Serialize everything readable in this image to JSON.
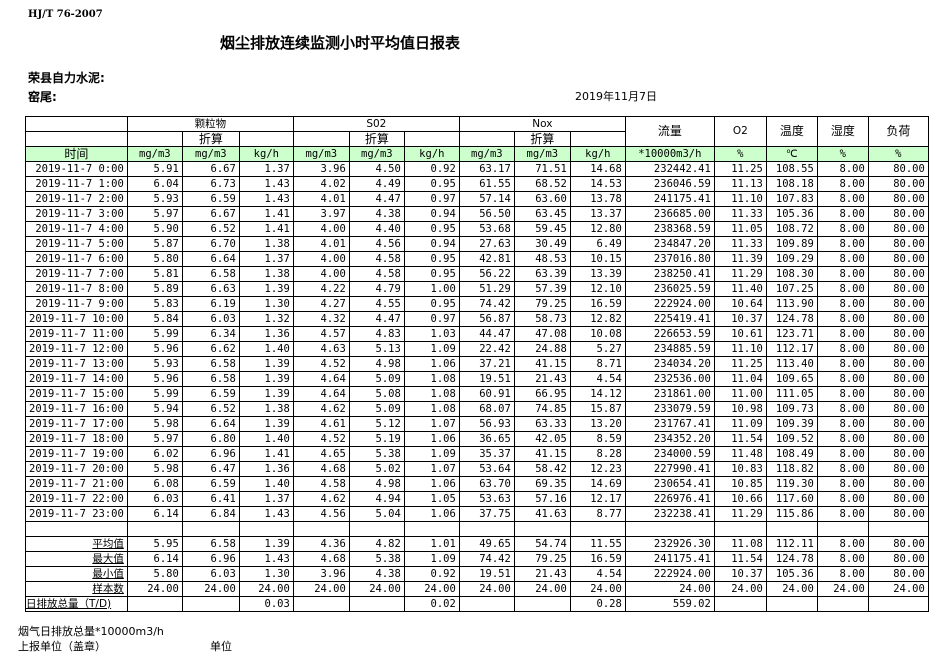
{
  "standard": "HJ/T  76-2007",
  "title": "烟尘排放连续监测小时平均值日报表",
  "company": "荣县自力水泥:",
  "kiln": "窑尾:",
  "date": "2019年11月7日",
  "header": {
    "particulate": "颗粒物",
    "so2": "S02",
    "nox": "Nox",
    "converted": "折算",
    "flow": "流量",
    "o2": "O2",
    "temperature": "温度",
    "humidity": "湿度",
    "load": "负荷",
    "time": "时间",
    "units": [
      "mg/m3",
      "mg/m3",
      "kg/h",
      "mg/m3",
      "mg/m3",
      "kg/h",
      "mg/m3",
      "mg/m3",
      "kg/h",
      "*10000m3/h",
      "%",
      "℃",
      "%",
      "%"
    ]
  },
  "colors": {
    "unit_row_bg": "#ccffcc"
  },
  "rows": [
    [
      "2019-11-7 0:00",
      "5.91",
      "6.67",
      "1.37",
      "3.96",
      "4.50",
      "0.92",
      "63.17",
      "71.51",
      "14.68",
      "232442.41",
      "11.25",
      "108.55",
      "8.00",
      "80.00"
    ],
    [
      "2019-11-7 1:00",
      "6.04",
      "6.73",
      "1.43",
      "4.02",
      "4.49",
      "0.95",
      "61.55",
      "68.52",
      "14.53",
      "236046.59",
      "11.13",
      "108.18",
      "8.00",
      "80.00"
    ],
    [
      "2019-11-7 2:00",
      "5.93",
      "6.59",
      "1.43",
      "4.01",
      "4.47",
      "0.97",
      "57.14",
      "63.60",
      "13.78",
      "241175.41",
      "11.10",
      "107.83",
      "8.00",
      "80.00"
    ],
    [
      "2019-11-7 3:00",
      "5.97",
      "6.67",
      "1.41",
      "3.97",
      "4.38",
      "0.94",
      "56.50",
      "63.45",
      "13.37",
      "236685.00",
      "11.33",
      "105.36",
      "8.00",
      "80.00"
    ],
    [
      "2019-11-7 4:00",
      "5.90",
      "6.52",
      "1.41",
      "4.00",
      "4.40",
      "0.95",
      "53.68",
      "59.45",
      "12.80",
      "238368.59",
      "11.05",
      "108.72",
      "8.00",
      "80.00"
    ],
    [
      "2019-11-7 5:00",
      "5.87",
      "6.70",
      "1.38",
      "4.01",
      "4.56",
      "0.94",
      "27.63",
      "30.49",
      "6.49",
      "234847.20",
      "11.33",
      "109.89",
      "8.00",
      "80.00"
    ],
    [
      "2019-11-7 6:00",
      "5.80",
      "6.64",
      "1.37",
      "4.00",
      "4.58",
      "0.95",
      "42.81",
      "48.53",
      "10.15",
      "237016.80",
      "11.39",
      "109.29",
      "8.00",
      "80.00"
    ],
    [
      "2019-11-7 7:00",
      "5.81",
      "6.58",
      "1.38",
      "4.00",
      "4.58",
      "0.95",
      "56.22",
      "63.39",
      "13.39",
      "238250.41",
      "11.29",
      "108.30",
      "8.00",
      "80.00"
    ],
    [
      "2019-11-7 8:00",
      "5.89",
      "6.63",
      "1.39",
      "4.22",
      "4.79",
      "1.00",
      "51.29",
      "57.39",
      "12.10",
      "236025.59",
      "11.40",
      "107.25",
      "8.00",
      "80.00"
    ],
    [
      "2019-11-7 9:00",
      "5.83",
      "6.19",
      "1.30",
      "4.27",
      "4.55",
      "0.95",
      "74.42",
      "79.25",
      "16.59",
      "222924.00",
      "10.64",
      "113.90",
      "8.00",
      "80.00"
    ],
    [
      "2019-11-7 10:00",
      "5.84",
      "6.03",
      "1.32",
      "4.32",
      "4.47",
      "0.97",
      "56.87",
      "58.73",
      "12.82",
      "225419.41",
      "10.37",
      "124.78",
      "8.00",
      "80.00"
    ],
    [
      "2019-11-7 11:00",
      "5.99",
      "6.34",
      "1.36",
      "4.57",
      "4.83",
      "1.03",
      "44.47",
      "47.08",
      "10.08",
      "226653.59",
      "10.61",
      "123.71",
      "8.00",
      "80.00"
    ],
    [
      "2019-11-7 12:00",
      "5.96",
      "6.62",
      "1.40",
      "4.63",
      "5.13",
      "1.09",
      "22.42",
      "24.88",
      "5.27",
      "234885.59",
      "11.10",
      "112.17",
      "8.00",
      "80.00"
    ],
    [
      "2019-11-7 13:00",
      "5.93",
      "6.58",
      "1.39",
      "4.52",
      "4.98",
      "1.06",
      "37.21",
      "41.15",
      "8.71",
      "234034.20",
      "11.25",
      "113.40",
      "8.00",
      "80.00"
    ],
    [
      "2019-11-7 14:00",
      "5.96",
      "6.58",
      "1.39",
      "4.64",
      "5.09",
      "1.08",
      "19.51",
      "21.43",
      "4.54",
      "232536.00",
      "11.04",
      "109.65",
      "8.00",
      "80.00"
    ],
    [
      "2019-11-7 15:00",
      "5.99",
      "6.59",
      "1.39",
      "4.64",
      "5.08",
      "1.08",
      "60.91",
      "66.95",
      "14.12",
      "231861.00",
      "11.00",
      "111.05",
      "8.00",
      "80.00"
    ],
    [
      "2019-11-7 16:00",
      "5.94",
      "6.52",
      "1.38",
      "4.62",
      "5.09",
      "1.08",
      "68.07",
      "74.85",
      "15.87",
      "233079.59",
      "10.98",
      "109.73",
      "8.00",
      "80.00"
    ],
    [
      "2019-11-7 17:00",
      "5.98",
      "6.64",
      "1.39",
      "4.61",
      "5.12",
      "1.07",
      "56.93",
      "63.33",
      "13.20",
      "231767.41",
      "11.09",
      "109.39",
      "8.00",
      "80.00"
    ],
    [
      "2019-11-7 18:00",
      "5.97",
      "6.80",
      "1.40",
      "4.52",
      "5.19",
      "1.06",
      "36.65",
      "42.05",
      "8.59",
      "234352.20",
      "11.54",
      "109.52",
      "8.00",
      "80.00"
    ],
    [
      "2019-11-7 19:00",
      "6.02",
      "6.96",
      "1.41",
      "4.65",
      "5.38",
      "1.09",
      "35.37",
      "41.15",
      "8.28",
      "234000.59",
      "11.48",
      "108.49",
      "8.00",
      "80.00"
    ],
    [
      "2019-11-7 20:00",
      "5.98",
      "6.47",
      "1.36",
      "4.68",
      "5.02",
      "1.07",
      "53.64",
      "58.42",
      "12.23",
      "227990.41",
      "10.83",
      "118.82",
      "8.00",
      "80.00"
    ],
    [
      "2019-11-7 21:00",
      "6.08",
      "6.59",
      "1.40",
      "4.58",
      "4.98",
      "1.06",
      "63.70",
      "69.35",
      "14.69",
      "230654.41",
      "10.85",
      "119.30",
      "8.00",
      "80.00"
    ],
    [
      "2019-11-7 22:00",
      "6.03",
      "6.41",
      "1.37",
      "4.62",
      "4.94",
      "1.05",
      "53.63",
      "57.16",
      "12.17",
      "226976.41",
      "10.66",
      "117.60",
      "8.00",
      "80.00"
    ],
    [
      "2019-11-7 23:00",
      "6.14",
      "6.84",
      "1.43",
      "4.56",
      "5.04",
      "1.06",
      "37.75",
      "41.63",
      "8.77",
      "232238.41",
      "11.29",
      "115.86",
      "8.00",
      "80.00"
    ]
  ],
  "summary": [
    [
      "平均值",
      "5.95",
      "6.58",
      "1.39",
      "4.36",
      "4.82",
      "1.01",
      "49.65",
      "54.74",
      "11.55",
      "232926.30",
      "11.08",
      "112.11",
      "8.00",
      "80.00"
    ],
    [
      "最大值",
      "6.14",
      "6.96",
      "1.43",
      "4.68",
      "5.38",
      "1.09",
      "74.42",
      "79.25",
      "16.59",
      "241175.41",
      "11.54",
      "124.78",
      "8.00",
      "80.00"
    ],
    [
      "最小值",
      "5.80",
      "6.03",
      "1.30",
      "3.96",
      "4.38",
      "0.92",
      "19.51",
      "21.43",
      "4.54",
      "222924.00",
      "10.37",
      "105.36",
      "8.00",
      "80.00"
    ],
    [
      "样本数",
      "24.00",
      "24.00",
      "24.00",
      "24.00",
      "24.00",
      "24.00",
      "24.00",
      "24.00",
      "24.00",
      "24.00",
      "24.00",
      "24.00",
      "24.00",
      "24.00"
    ],
    [
      "日排放总量（T/D)",
      "",
      "",
      "0.03",
      "",
      "",
      "0.02",
      "",
      "",
      "0.28",
      "559.02",
      "",
      "",
      "",
      ""
    ]
  ],
  "footer": {
    "flue_gas_total": "烟气日排放总量*10000m3/h",
    "reporting_unit": "上报单位（盖章）",
    "unit": "单位"
  }
}
